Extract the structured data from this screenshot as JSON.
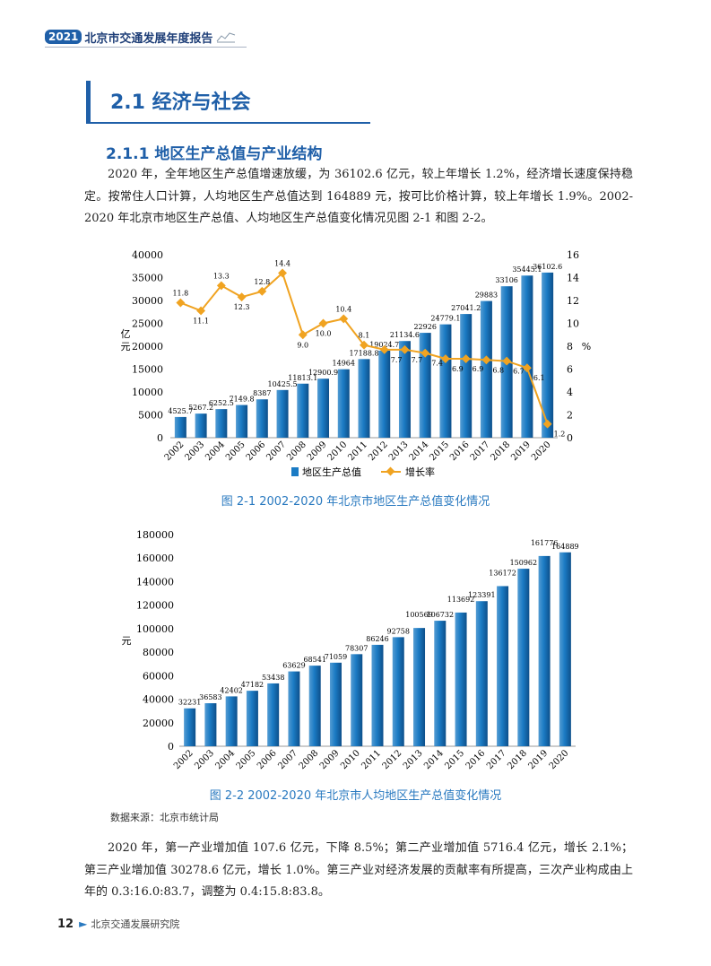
{
  "header": {
    "badge": "2021",
    "title": "北京市交通发展年度报告"
  },
  "section": {
    "title": "2.1  经济与社会"
  },
  "subsection": {
    "title": "2.1.1  地区生产总值与产业结构"
  },
  "paragraph1": "2020 年，全年地区生产总值增速放缓，为 36102.6 亿元，较上年增长 1.2%，经济增长速度保持稳定。按常住人口计算，人均地区生产总值达到 164889 元，按可比价格计算，较上年增长 1.9%。2002-2020 年北京市地区生产总值、人均地区生产总值变化情况见图 2-1 和图 2-2。",
  "chart_data": [
    {
      "type": "bar",
      "caption": "图 2-1  2002-2020 年北京市地区生产总值变化情况",
      "categories": [
        "2002",
        "2003",
        "2004",
        "2005",
        "2006",
        "2007",
        "2008",
        "2009",
        "2010",
        "2011",
        "2012",
        "2013",
        "2014",
        "2015",
        "2016",
        "2017",
        "2018",
        "2019",
        "2020"
      ],
      "series": [
        {
          "name": "地区生产总值",
          "type": "bar",
          "axis": "left",
          "values": [
            4525.7,
            5267.2,
            6252.5,
            7149.8,
            8387,
            10425.5,
            11813.1,
            12900.9,
            14964,
            17188.8,
            19024.7,
            21134.6,
            22926,
            24779.1,
            27041.2,
            29883,
            33106,
            35445.1,
            36102.6
          ],
          "labels": [
            "4525.7",
            "5267.2",
            "6252.5",
            "7149.8",
            "8387",
            "10425.5",
            "11813.1",
            "12900.9",
            "14964",
            "17188.8",
            "19024.7",
            "21134.6",
            "22926",
            "24779.1",
            "27041.2",
            "29883",
            "33106",
            "35445.1",
            "36102.6"
          ]
        },
        {
          "name": "增长率",
          "type": "line",
          "axis": "right",
          "values": [
            11.8,
            11.1,
            13.3,
            12.3,
            12.8,
            14.4,
            9.0,
            10.0,
            10.4,
            8.1,
            7.7,
            7.7,
            7.4,
            6.9,
            6.9,
            6.8,
            6.7,
            6.1,
            1.2
          ],
          "labels": [
            "11.8",
            "11.1",
            "13.3",
            "12.3",
            "12.8",
            "14.4",
            "9.0",
            "10.0",
            "10.4",
            "8.1",
            "7.7",
            "7.7",
            "7.4",
            "6.9",
            "6.9",
            "6.8",
            "6.7",
            "6.1",
            "1.2"
          ]
        }
      ],
      "ylabel": "亿元",
      "y2label": "%",
      "ylim": [
        0,
        40000
      ],
      "y2lim": [
        0,
        16
      ],
      "yticks": [
        "0",
        "5000",
        "10000",
        "15000",
        "20000",
        "25000",
        "30000",
        "35000",
        "40000"
      ],
      "y2ticks": [
        "0",
        "2",
        "4",
        "6",
        "8",
        "10",
        "12",
        "14",
        "16"
      ],
      "legend": [
        "地区生产总值",
        "增长率"
      ],
      "colors": {
        "bar": "#1b7bc4",
        "line": "#f0a321"
      }
    },
    {
      "type": "bar",
      "caption": "图 2-2  2002-2020 年北京市人均地区生产总值变化情况",
      "categories": [
        "2002",
        "2003",
        "2004",
        "2005",
        "2006",
        "2007",
        "2008",
        "2009",
        "2010",
        "2011",
        "2012",
        "2013",
        "2014",
        "2015",
        "2016",
        "2017",
        "2018",
        "2019",
        "2020"
      ],
      "values": [
        32231,
        36583,
        42402,
        47182,
        53438,
        63629,
        68541,
        71059,
        78307,
        86246,
        92758,
        100569,
        106732,
        113692,
        123391,
        136172,
        150962,
        161776,
        164889
      ],
      "labels": [
        "32231",
        "36583",
        "42402",
        "47182",
        "53438",
        "63629",
        "68541",
        "71059",
        "78307",
        "86246",
        "92758",
        "100569",
        "106732",
        "113692",
        "123391",
        "136172",
        "150962",
        "161776",
        "164889"
      ],
      "ylabel": "元",
      "ylim": [
        0,
        180000
      ],
      "yticks": [
        "0",
        "20000",
        "40000",
        "60000",
        "80000",
        "100000",
        "120000",
        "140000",
        "160000",
        "180000"
      ],
      "colors": {
        "bar": "#1b7bc4"
      }
    }
  ],
  "source": "数据来源：北京市统计局",
  "paragraph2": "2020 年，第一产业增加值 107.6 亿元，下降 8.5%；第二产业增加值 5716.4 亿元，增长 2.1%；第三产业增加值 30278.6 亿元，增长 1.0%。第三产业对经济发展的贡献率有所提高，三次产业构成由上年的 0.3:16.0:83.7，调整为 0.4:15.8:83.8。",
  "footer": {
    "page": "12",
    "org": "北京交通发展研究院"
  }
}
